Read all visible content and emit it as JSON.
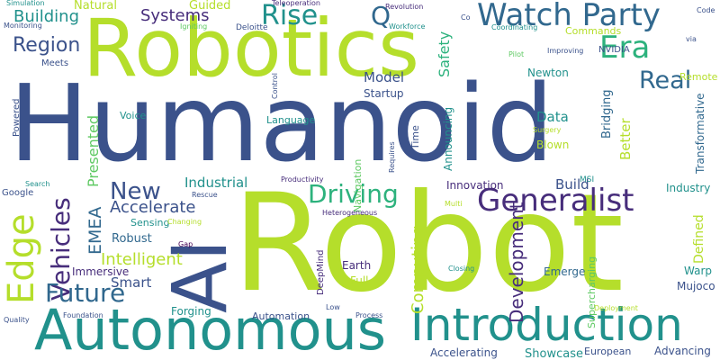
{
  "palette": {
    "navy": "#3b528b",
    "teal": "#21918c",
    "green": "#5ec962",
    "lime": "#b5de2b",
    "purple": "#472d7b",
    "aqua": "#2db27d",
    "blue": "#31688e",
    "dark": "#440154"
  },
  "words": [
    {
      "text": "Humanoid",
      "color": "navy",
      "vertical": false
    },
    {
      "text": "Robotics",
      "color": "lime",
      "vertical": false
    },
    {
      "text": "Robot",
      "color": "lime",
      "vertical": false
    },
    {
      "text": "AI",
      "color": "navy",
      "vertical": true
    },
    {
      "text": "Autonomous",
      "color": "teal",
      "vertical": false
    },
    {
      "text": "Introduction",
      "color": "teal",
      "vertical": false
    },
    {
      "text": "Watch Party",
      "color": "blue",
      "vertical": false
    },
    {
      "text": "Generalist",
      "color": "purple",
      "vertical": false
    },
    {
      "text": "Era",
      "color": "aqua",
      "vertical": false
    },
    {
      "text": "Edge",
      "color": "lime",
      "vertical": true
    },
    {
      "text": "Vehicles",
      "color": "purple",
      "vertical": true
    },
    {
      "text": "Driving",
      "color": "aqua",
      "vertical": false
    },
    {
      "text": "Future",
      "color": "blue",
      "vertical": false
    },
    {
      "text": "Rise",
      "color": "teal",
      "vertical": false
    },
    {
      "text": "Real",
      "color": "blue",
      "vertical": false
    },
    {
      "text": "New",
      "color": "navy",
      "vertical": false
    },
    {
      "text": "Region",
      "color": "navy",
      "vertical": false
    },
    {
      "text": "Q",
      "color": "blue",
      "vertical": false
    },
    {
      "text": "Development",
      "color": "purple",
      "vertical": true
    },
    {
      "text": "Systems",
      "color": "purple",
      "vertical": false
    },
    {
      "text": "Building",
      "color": "teal",
      "vertical": false
    },
    {
      "text": "EMEA",
      "color": "blue",
      "vertical": true
    },
    {
      "text": "Intelligent",
      "color": "lime",
      "vertical": false
    },
    {
      "text": "Accelerate",
      "color": "navy",
      "vertical": false
    },
    {
      "text": "Computing",
      "color": "lime",
      "vertical": true
    },
    {
      "text": "Presented",
      "color": "green",
      "vertical": true
    },
    {
      "text": "Industrial",
      "color": "teal",
      "vertical": false
    },
    {
      "text": "Smart",
      "color": "navy",
      "vertical": false
    },
    {
      "text": "Model",
      "color": "navy",
      "vertical": false
    },
    {
      "text": "Safety",
      "color": "aqua",
      "vertical": true
    },
    {
      "text": "Better",
      "color": "lime",
      "vertical": true
    },
    {
      "text": "Data",
      "color": "teal",
      "vertical": false
    },
    {
      "text": "Build",
      "color": "navy",
      "vertical": false
    },
    {
      "text": "Natural",
      "color": "lime",
      "vertical": false
    },
    {
      "text": "Guided",
      "color": "lime",
      "vertical": false
    },
    {
      "text": "Robust",
      "color": "blue",
      "vertical": false
    },
    {
      "text": "Defined",
      "color": "lime",
      "vertical": true
    },
    {
      "text": "Transformative",
      "color": "blue",
      "vertical": true
    },
    {
      "text": "Bridging",
      "color": "blue",
      "vertical": true
    },
    {
      "text": "Announcing",
      "color": "teal",
      "vertical": true
    },
    {
      "text": "Showcase",
      "color": "teal",
      "vertical": false
    },
    {
      "text": "Accelerating",
      "color": "navy",
      "vertical": false
    },
    {
      "text": "European",
      "color": "navy",
      "vertical": false
    },
    {
      "text": "Advancing",
      "color": "navy",
      "vertical": false
    },
    {
      "text": "Supercharging",
      "color": "green",
      "vertical": true
    },
    {
      "text": "Innovation",
      "color": "purple",
      "vertical": false
    },
    {
      "text": "Industry",
      "color": "teal",
      "vertical": false
    },
    {
      "text": "Emerge",
      "color": "blue",
      "vertical": false
    },
    {
      "text": "Mujoco",
      "color": "navy",
      "vertical": false
    },
    {
      "text": "Warp",
      "color": "teal",
      "vertical": false
    },
    {
      "text": "Newton",
      "color": "teal",
      "vertical": false
    },
    {
      "text": "Startup",
      "color": "navy",
      "vertical": false
    },
    {
      "text": "Blown",
      "color": "lime",
      "vertical": false
    },
    {
      "text": "Time",
      "color": "navy",
      "vertical": true
    },
    {
      "text": "Earth",
      "color": "purple",
      "vertical": false
    },
    {
      "text": "Full",
      "color": "lime",
      "vertical": false
    },
    {
      "text": "Forging",
      "color": "teal",
      "vertical": false
    },
    {
      "text": "Automation",
      "color": "navy",
      "vertical": false
    },
    {
      "text": "Immersive",
      "color": "purple",
      "vertical": false
    },
    {
      "text": "Sensing",
      "color": "teal",
      "vertical": false
    },
    {
      "text": "Language",
      "color": "teal",
      "vertical": false
    },
    {
      "text": "Voice",
      "color": "teal",
      "vertical": false
    },
    {
      "text": "Powered",
      "color": "navy",
      "vertical": true
    },
    {
      "text": "Meets",
      "color": "navy",
      "vertical": false
    },
    {
      "text": "Commands",
      "color": "lime",
      "vertical": false
    },
    {
      "text": "NVIDIA",
      "color": "navy",
      "vertical": false
    },
    {
      "text": "Remote",
      "color": "lime",
      "vertical": false
    },
    {
      "text": "Navigation",
      "color": "green",
      "vertical": true
    },
    {
      "text": "Google",
      "color": "navy",
      "vertical": false
    },
    {
      "text": "DeepMind",
      "color": "purple",
      "vertical": true
    },
    {
      "text": "MSI",
      "color": "teal",
      "vertical": false
    },
    {
      "text": "Simulation",
      "color": "teal",
      "vertical": false
    },
    {
      "text": "Monitoring",
      "color": "navy",
      "vertical": false
    },
    {
      "text": "Igniting",
      "color": "green",
      "vertical": false
    },
    {
      "text": "Deloitte",
      "color": "navy",
      "vertical": false
    },
    {
      "text": "Teleoperation",
      "color": "purple",
      "vertical": false
    },
    {
      "text": "Revolution",
      "color": "purple",
      "vertical": false
    },
    {
      "text": "Workforce",
      "color": "teal",
      "vertical": false
    },
    {
      "text": "Coordinating",
      "color": "teal",
      "vertical": false
    },
    {
      "text": "Co",
      "color": "navy",
      "vertical": false
    },
    {
      "text": "Code",
      "color": "navy",
      "vertical": false
    },
    {
      "text": "via",
      "color": "navy",
      "vertical": false
    },
    {
      "text": "Pilot",
      "color": "green",
      "vertical": false
    },
    {
      "text": "Improving",
      "color": "navy",
      "vertical": false
    },
    {
      "text": "Control",
      "color": "navy",
      "vertical": true
    },
    {
      "text": "Surgery",
      "color": "lime",
      "vertical": false
    },
    {
      "text": "Requires",
      "color": "navy",
      "vertical": true
    },
    {
      "text": "Productivity",
      "color": "purple",
      "vertical": false
    },
    {
      "text": "Rescue",
      "color": "navy",
      "vertical": false
    },
    {
      "text": "Changing",
      "color": "lime",
      "vertical": false
    },
    {
      "text": "Heterogeneous",
      "color": "purple",
      "vertical": false
    },
    {
      "text": "Multi",
      "color": "lime",
      "vertical": false
    },
    {
      "text": "Search",
      "color": "teal",
      "vertical": false
    },
    {
      "text": "Gap",
      "color": "dark",
      "vertical": false
    },
    {
      "text": "Closing",
      "color": "teal",
      "vertical": false
    },
    {
      "text": "Low",
      "color": "navy",
      "vertical": false
    },
    {
      "text": "Process",
      "color": "navy",
      "vertical": false
    },
    {
      "text": "Deployment",
      "color": "lime",
      "vertical": false
    },
    {
      "text": "Quality",
      "color": "navy",
      "vertical": false
    },
    {
      "text": "Foundation",
      "color": "navy",
      "vertical": false
    }
  ]
}
